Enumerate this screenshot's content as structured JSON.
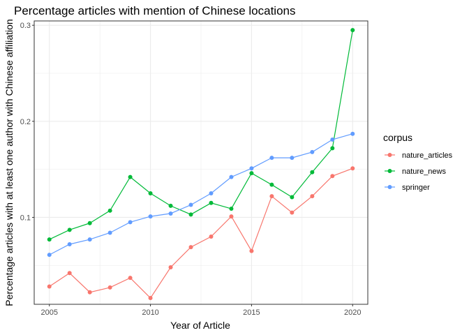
{
  "chart_data": {
    "type": "line",
    "title": "Percentage articles with mention of Chinese locations",
    "xlabel": "Year of Article",
    "ylabel": "Percentage articles with at least one author with Chinese affiliation",
    "x": [
      2005,
      2006,
      2007,
      2008,
      2009,
      2010,
      2011,
      2012,
      2013,
      2014,
      2015,
      2016,
      2017,
      2018,
      2019,
      2020
    ],
    "xticks": [
      2005,
      2010,
      2015,
      2020
    ],
    "xtick_labels": [
      "2005",
      "2010",
      "2015",
      "2020"
    ],
    "yticks": [
      0.1,
      0.2,
      0.3
    ],
    "ytick_labels": [
      "0.1",
      "0.2",
      "0.3"
    ],
    "xlim": [
      2004.25,
      2020.75
    ],
    "ylim": [
      0.0095,
      0.3045
    ],
    "grid": true,
    "legend_title": "corpus",
    "legend_position": "right",
    "series": [
      {
        "name": "nature_articles",
        "color": "#F8766D",
        "values": [
          0.028,
          0.042,
          0.022,
          0.027,
          0.037,
          0.016,
          0.048,
          0.069,
          0.08,
          0.101,
          0.065,
          0.122,
          0.105,
          0.122,
          0.143,
          0.151
        ]
      },
      {
        "name": "nature_news",
        "color": "#00BA38",
        "values": [
          0.077,
          0.087,
          0.094,
          0.107,
          0.142,
          0.125,
          0.112,
          0.103,
          0.115,
          0.109,
          0.146,
          0.134,
          0.121,
          0.147,
          0.172,
          0.295
        ]
      },
      {
        "name": "springer",
        "color": "#619CFF",
        "values": [
          0.061,
          0.072,
          0.077,
          0.084,
          0.095,
          0.101,
          0.104,
          0.113,
          0.125,
          0.142,
          0.151,
          0.162,
          0.162,
          0.168,
          0.181,
          0.187
        ]
      }
    ]
  }
}
